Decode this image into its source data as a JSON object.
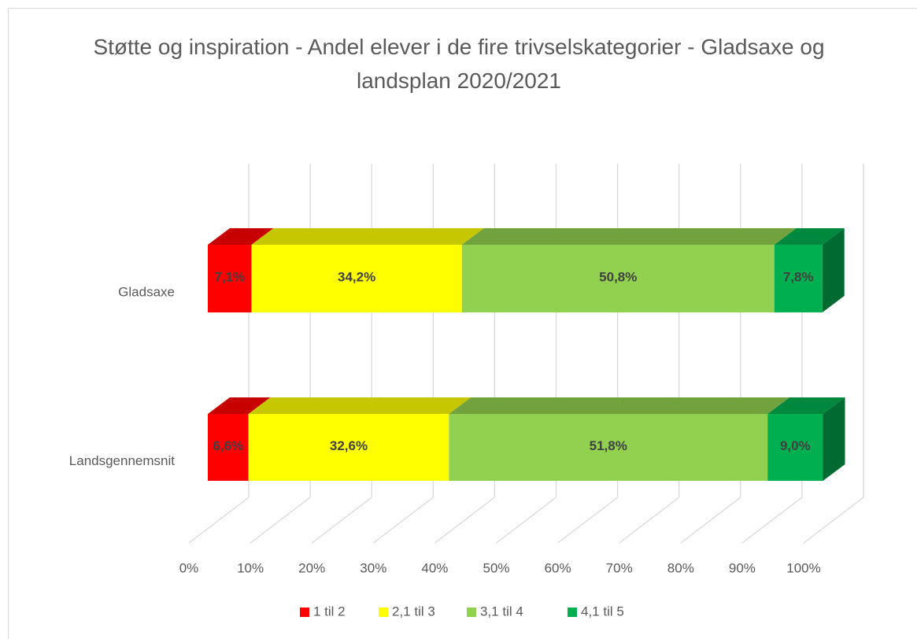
{
  "chart_data": {
    "type": "bar3d_stacked_horizontal",
    "title": "Støtte og inspiration - Andel elever i de fire trivselskategorier - Gladsaxe og landsplan 2020/2021",
    "categories": [
      "Gladsaxe",
      "Landsgennemsnit"
    ],
    "series": [
      {
        "name": "1 til 2",
        "color": "#ff0000",
        "values": [
          7.1,
          6.6
        ],
        "value_labels": [
          "7,1%",
          "6,6%"
        ]
      },
      {
        "name": "2,1 til 3",
        "color": "#ffff00",
        "values": [
          34.2,
          32.6
        ],
        "value_labels": [
          "34,2%",
          "32,6%"
        ]
      },
      {
        "name": "3,1 til 4",
        "color": "#92d050",
        "values": [
          50.8,
          51.8
        ],
        "value_labels": [
          "50,8%",
          "51,8%"
        ]
      },
      {
        "name": "4,1 til 5",
        "color": "#00b050",
        "values": [
          7.8,
          9.0
        ],
        "value_labels": [
          "7,8%",
          "9,0%"
        ]
      }
    ],
    "xlim": [
      0,
      100
    ],
    "xticks": [
      {
        "value": 0,
        "label": "0%"
      },
      {
        "value": 10,
        "label": "10%"
      },
      {
        "value": 20,
        "label": "20%"
      },
      {
        "value": 30,
        "label": "30%"
      },
      {
        "value": 40,
        "label": "40%"
      },
      {
        "value": 50,
        "label": "50%"
      },
      {
        "value": 60,
        "label": "60%"
      },
      {
        "value": 70,
        "label": "70%"
      },
      {
        "value": 80,
        "label": "80%"
      },
      {
        "value": 90,
        "label": "90%"
      },
      {
        "value": 100,
        "label": "100%"
      }
    ],
    "grid": true,
    "legend": "bottom"
  }
}
